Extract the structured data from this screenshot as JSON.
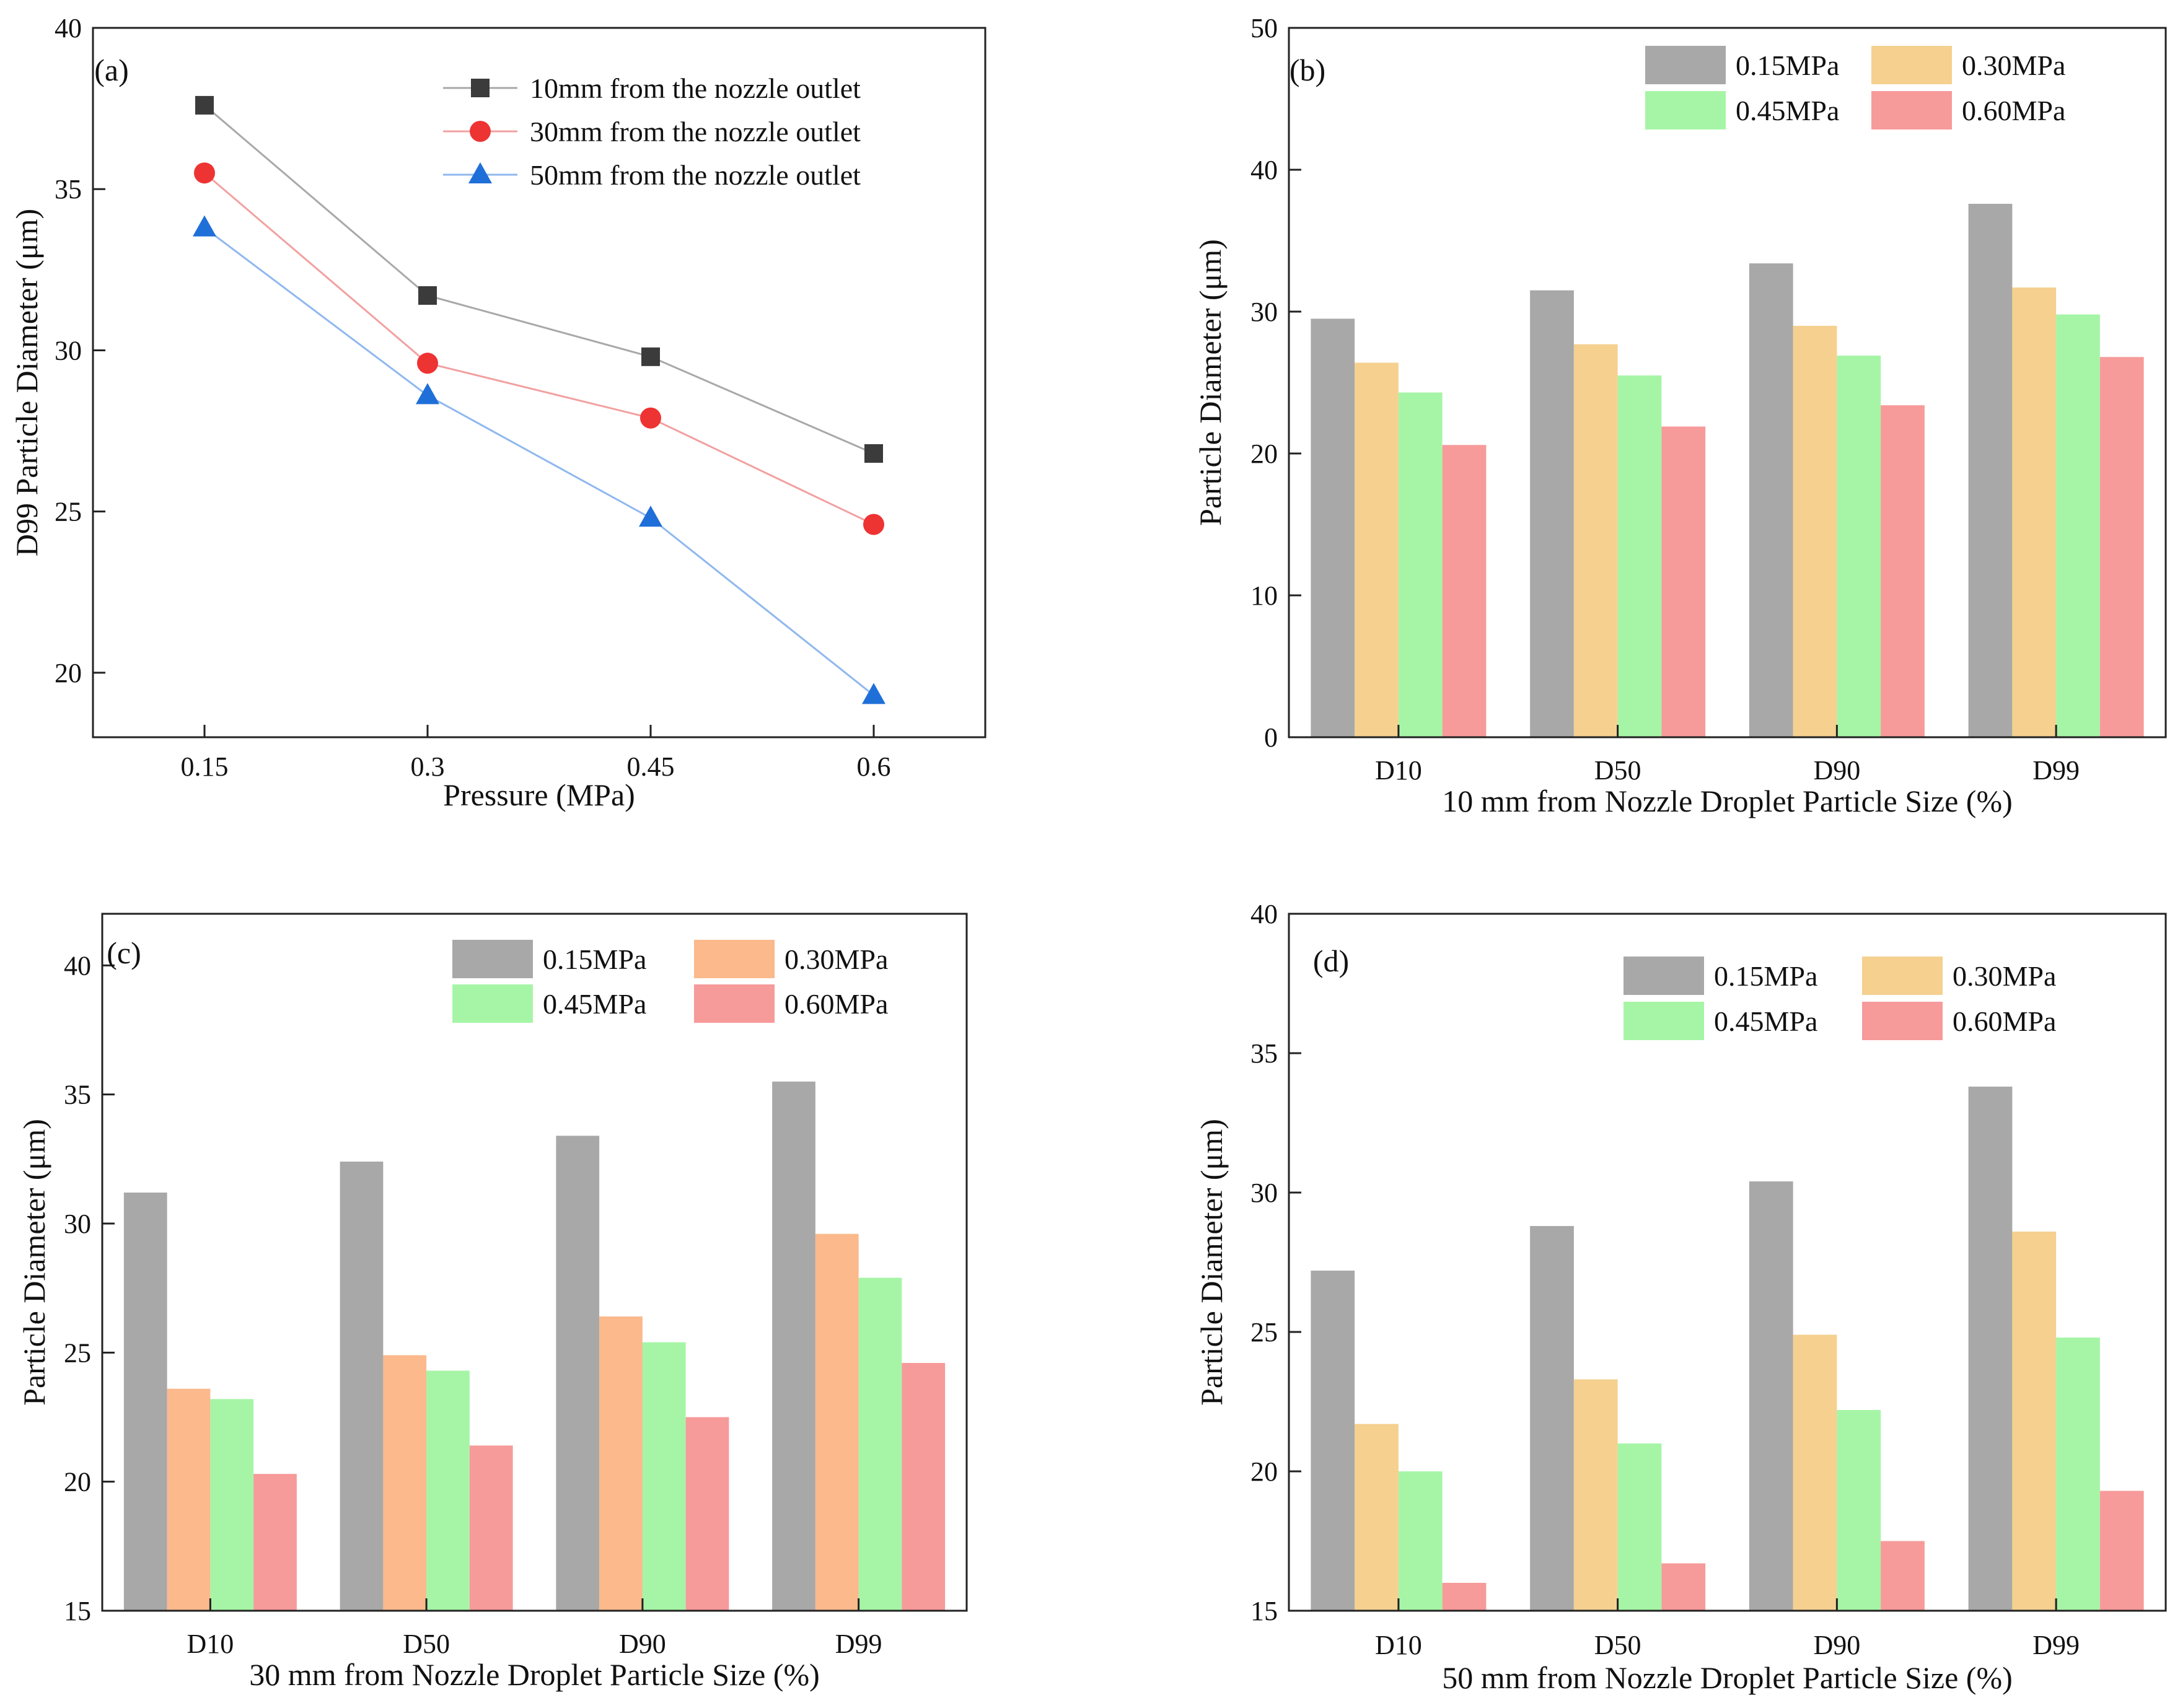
{
  "chart_data": [
    {
      "panel": "(a)",
      "type": "line",
      "title": "",
      "xlabel": "Pressure (MPa)",
      "ylabel": "D99 Particle Diameter (μm)",
      "categories": [
        "0.15",
        "0.3",
        "0.45",
        "0.6"
      ],
      "ylim": [
        18,
        40
      ],
      "yticks": [
        20,
        25,
        30,
        35,
        40
      ],
      "legend": "top-right",
      "grid": false,
      "series": [
        {
          "name": "10mm from the nozzle outlet",
          "marker": "square",
          "color": "#3b3b3b",
          "line_color": "#a8a8a8",
          "values": [
            37.6,
            31.7,
            29.8,
            26.8
          ]
        },
        {
          "name": "30mm from the nozzle outlet",
          "marker": "circle",
          "color": "#ee3333",
          "line_color": "#f2a0a0",
          "values": [
            35.5,
            29.6,
            27.9,
            24.6
          ]
        },
        {
          "name": "50mm from the nozzle outlet",
          "marker": "triangle",
          "color": "#1f6fd8",
          "line_color": "#8fb8ee",
          "values": [
            33.8,
            28.6,
            24.8,
            19.3
          ]
        }
      ]
    },
    {
      "panel": "(b)",
      "type": "bar",
      "title": "",
      "xlabel": "10 mm from Nozzle Droplet Particle Size (%)",
      "ylabel": "Particle Diameter (μm)",
      "categories": [
        "D10",
        "D50",
        "D90",
        "D99"
      ],
      "ylim": [
        0,
        50
      ],
      "yticks": [
        0,
        10,
        20,
        30,
        40,
        50
      ],
      "legend": "top-right",
      "grid": false,
      "series": [
        {
          "name": "0.15MPa",
          "color": "#a8a8a8",
          "values": [
            29.5,
            31.5,
            33.4,
            37.6
          ]
        },
        {
          "name": "0.30MPa",
          "color": "#f5d08f",
          "values": [
            26.4,
            27.7,
            29.0,
            31.7
          ]
        },
        {
          "name": "0.45MPa",
          "color": "#a6f5a6",
          "values": [
            24.3,
            25.5,
            26.9,
            29.8
          ]
        },
        {
          "name": "0.60MPa",
          "color": "#f79a9a",
          "values": [
            20.6,
            21.9,
            23.4,
            26.8
          ]
        }
      ]
    },
    {
      "panel": "(c)",
      "type": "bar",
      "title": "",
      "xlabel": "30 mm from Nozzle Droplet Particle Size (%)",
      "ylabel": "Particle Diameter (μm)",
      "categories": [
        "D10",
        "D50",
        "D90",
        "D99"
      ],
      "ylim": [
        15,
        42
      ],
      "yticks": [
        15,
        20,
        25,
        30,
        35,
        40
      ],
      "legend": "top-right",
      "grid": false,
      "series": [
        {
          "name": "0.15MPa",
          "color": "#a8a8a8",
          "values": [
            31.2,
            32.4,
            33.4,
            35.5
          ]
        },
        {
          "name": "0.30MPa",
          "color": "#fbb98c",
          "values": [
            23.6,
            24.9,
            26.4,
            29.6
          ]
        },
        {
          "name": "0.45MPa",
          "color": "#a6f5a6",
          "values": [
            23.2,
            24.3,
            25.4,
            27.9
          ]
        },
        {
          "name": "0.60MPa",
          "color": "#f79a9a",
          "values": [
            20.3,
            21.4,
            22.5,
            24.6
          ]
        }
      ]
    },
    {
      "panel": "(d)",
      "type": "bar",
      "title": "",
      "xlabel": "50 mm from Nozzle Droplet Particle Size (%)",
      "ylabel": "Particle Diameter (μm)",
      "categories": [
        "D10",
        "D50",
        "D90",
        "D99"
      ],
      "ylim": [
        15,
        40
      ],
      "yticks": [
        15,
        20,
        25,
        30,
        35,
        40
      ],
      "legend": "top-right",
      "grid": false,
      "series": [
        {
          "name": "0.15MPa",
          "color": "#a8a8a8",
          "values": [
            27.2,
            28.8,
            30.4,
            33.8
          ]
        },
        {
          "name": "0.30MPa",
          "color": "#f5d08f",
          "values": [
            21.7,
            23.3,
            24.9,
            28.6
          ]
        },
        {
          "name": "0.45MPa",
          "color": "#a6f5a6",
          "values": [
            20.0,
            21.0,
            22.2,
            24.8
          ]
        },
        {
          "name": "0.60MPa",
          "color": "#f79a9a",
          "values": [
            16.0,
            16.7,
            17.5,
            19.3
          ]
        }
      ]
    }
  ]
}
